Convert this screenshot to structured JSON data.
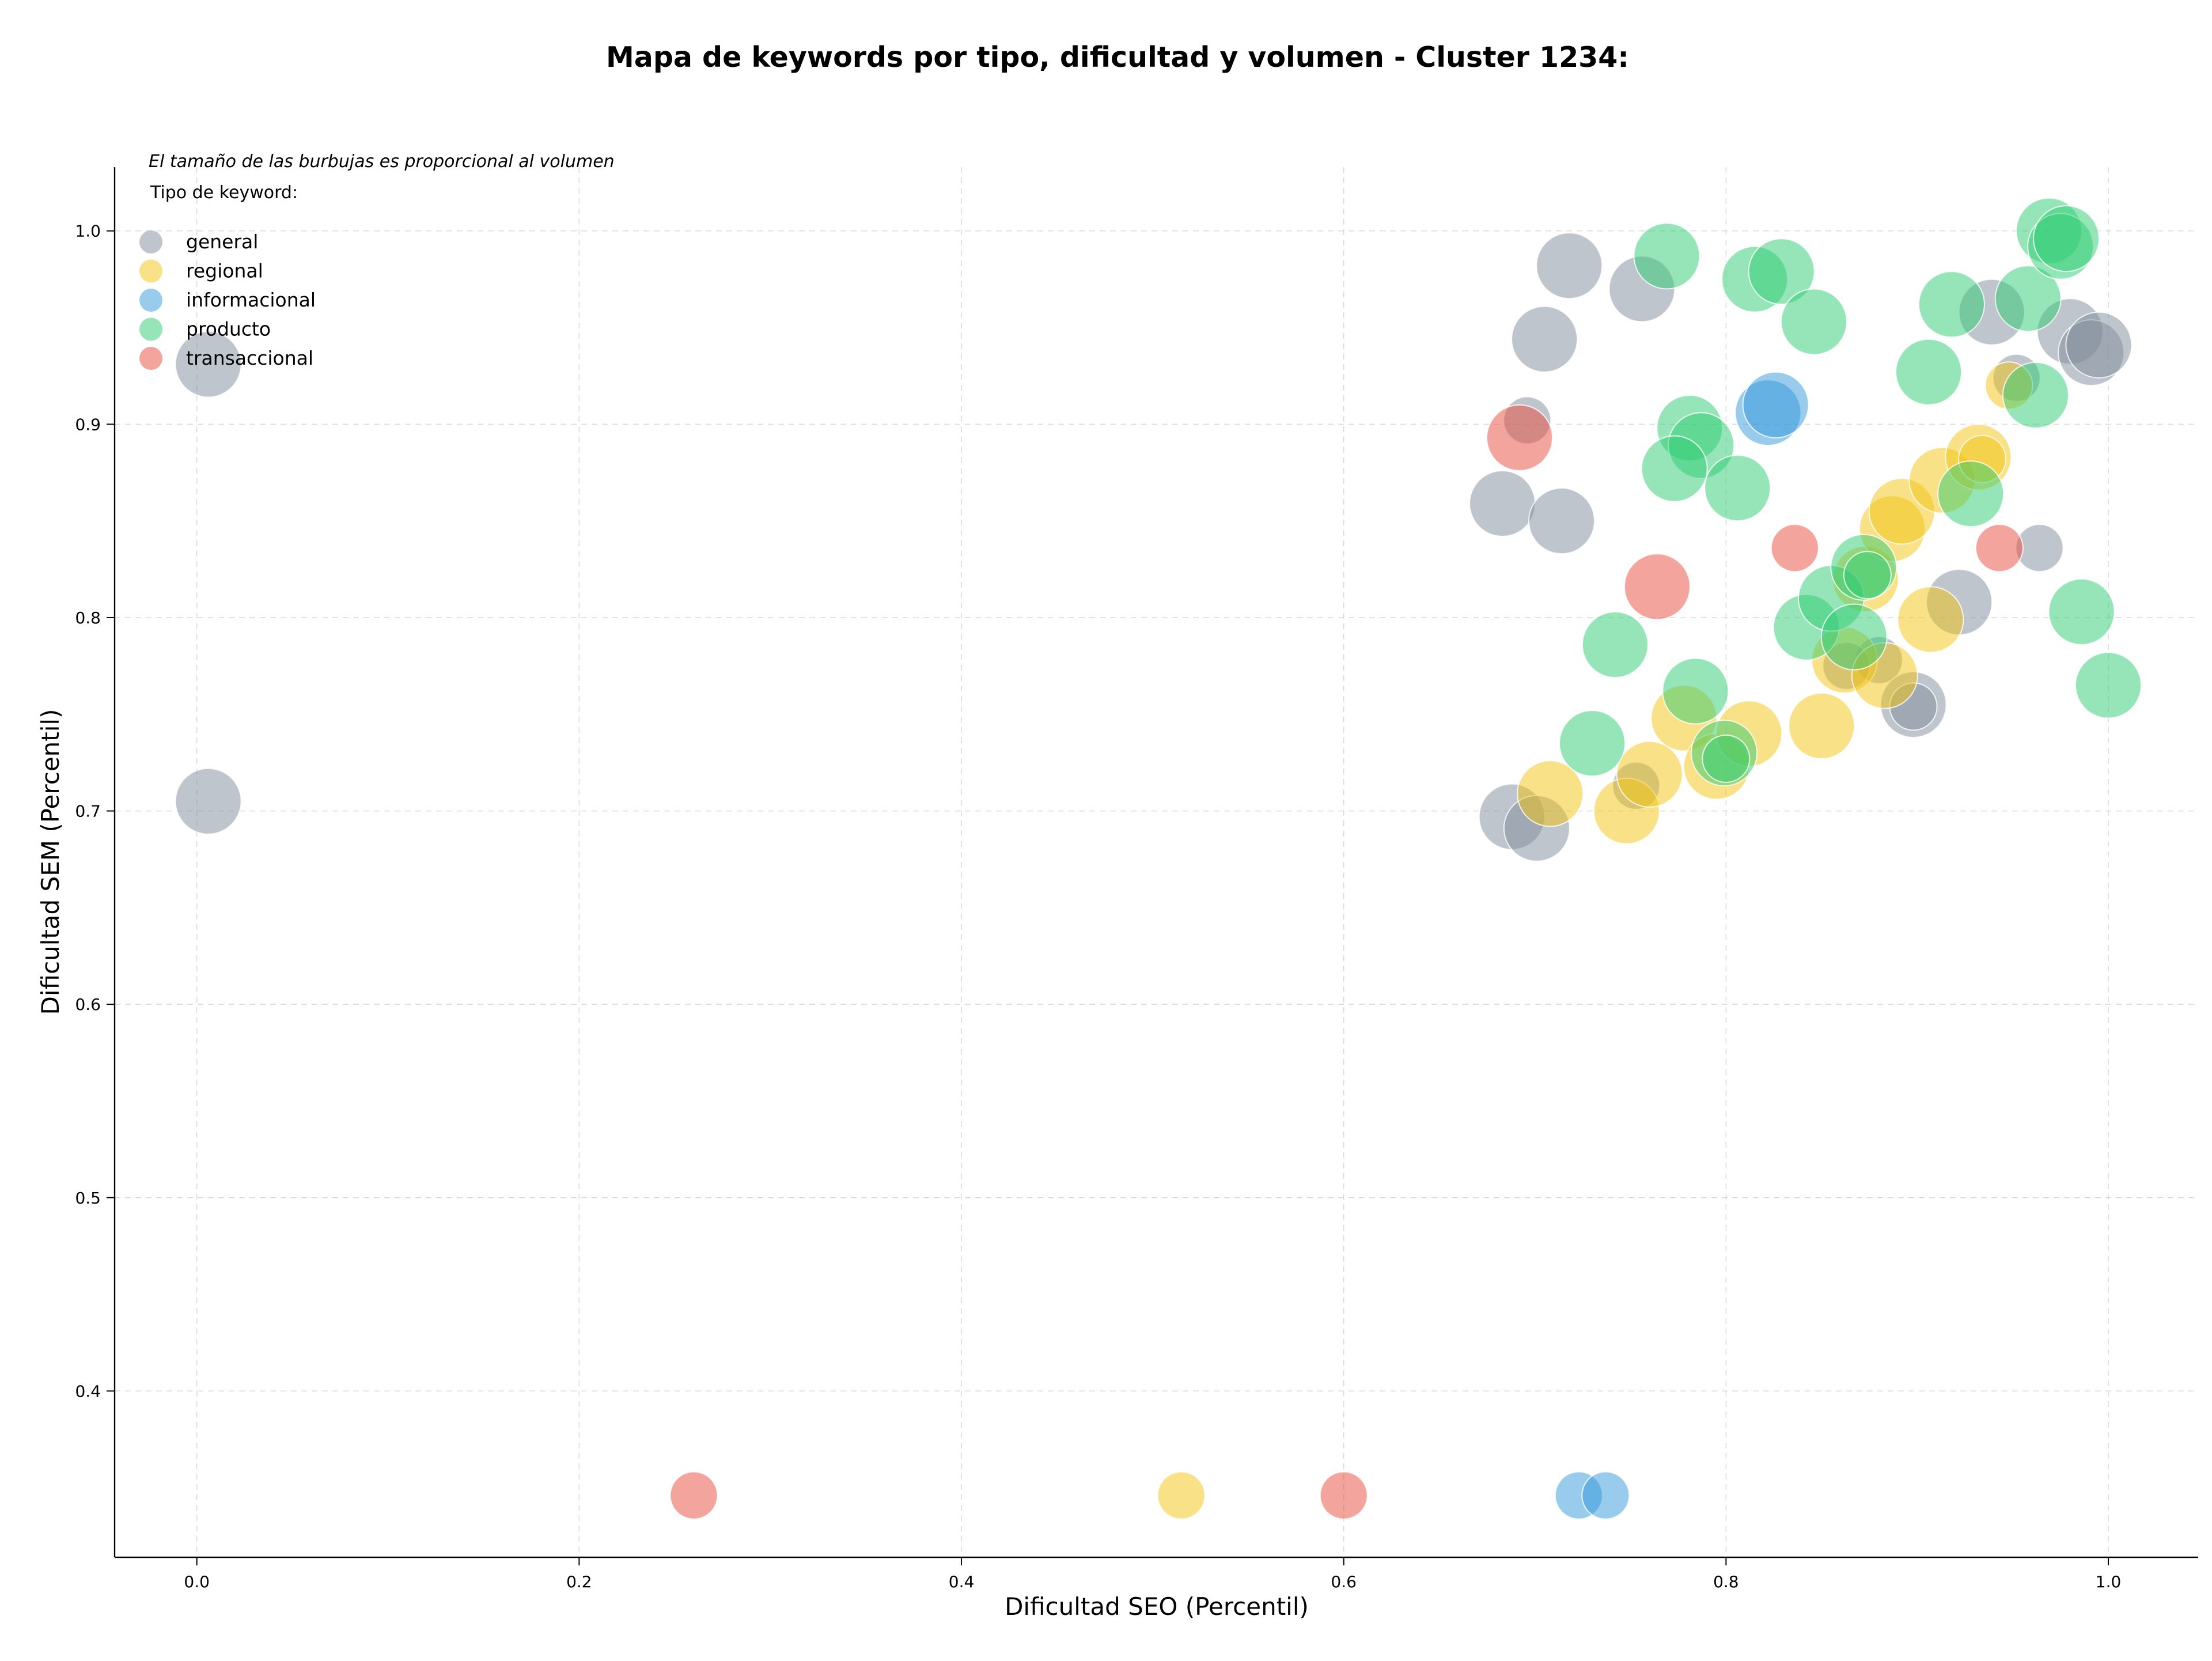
{
  "chart_data": {
    "type": "scatter",
    "title": "Mapa de keywords por tipo, dificultad y volumen - Cluster 1234:",
    "xlabel": "Dificultad SEO (Percentil)",
    "ylabel": "Dificultad SEM (Percentil)",
    "note": "El tamaño de las burbujas es proporcional al volumen",
    "legend_title": "Tipo de keyword:",
    "legend_position": "top-left",
    "grid": true,
    "xlim": [
      -0.043,
      1.047
    ],
    "ylim": [
      0.314,
      1.033
    ],
    "x_ticks": [
      0.0,
      0.2,
      0.4,
      0.6,
      0.8,
      1.0
    ],
    "y_ticks": [
      0.4,
      0.5,
      0.6,
      0.7,
      0.8,
      0.9,
      1.0
    ],
    "x_tick_labels": [
      "0.0",
      "0.2",
      "0.4",
      "0.6",
      "0.8",
      "1.0"
    ],
    "y_tick_labels": [
      "0.4",
      "0.5",
      "0.6",
      "0.7",
      "0.8",
      "0.9",
      "1.0"
    ],
    "size_scale": [
      1,
      2
    ],
    "series": [
      {
        "name": "general",
        "color": "#7f8c9a",
        "points": [
          {
            "x": 0.006,
            "y": 0.931,
            "s": 2
          },
          {
            "x": 0.006,
            "y": 0.705,
            "s": 2
          },
          {
            "x": 0.696,
            "y": 0.902,
            "s": 1
          },
          {
            "x": 0.705,
            "y": 0.944,
            "s": 2
          },
          {
            "x": 0.718,
            "y": 0.982,
            "s": 2
          },
          {
            "x": 0.756,
            "y": 0.97,
            "s": 2
          },
          {
            "x": 0.683,
            "y": 0.859,
            "s": 2
          },
          {
            "x": 0.714,
            "y": 0.85,
            "s": 2
          },
          {
            "x": 0.688,
            "y": 0.697,
            "s": 2
          },
          {
            "x": 0.701,
            "y": 0.691,
            "s": 2
          },
          {
            "x": 0.753,
            "y": 0.713,
            "s": 1
          },
          {
            "x": 0.939,
            "y": 0.958,
            "s": 2
          },
          {
            "x": 0.952,
            "y": 0.924,
            "s": 1
          },
          {
            "x": 0.98,
            "y": 0.948,
            "s": 2
          },
          {
            "x": 0.991,
            "y": 0.937,
            "s": 2
          },
          {
            "x": 0.995,
            "y": 0.941,
            "s": 2
          },
          {
            "x": 0.922,
            "y": 0.808,
            "s": 2
          },
          {
            "x": 0.964,
            "y": 0.836,
            "s": 1
          },
          {
            "x": 0.88,
            "y": 0.778,
            "s": 1
          },
          {
            "x": 0.863,
            "y": 0.775,
            "s": 1
          },
          {
            "x": 0.898,
            "y": 0.755,
            "s": 2
          },
          {
            "x": 0.898,
            "y": 0.754,
            "s": 1
          }
        ]
      },
      {
        "name": "regional",
        "color": "#f1c40f",
        "points": [
          {
            "x": 0.515,
            "y": 0.346,
            "s": 1
          },
          {
            "x": 0.708,
            "y": 0.709,
            "s": 2
          },
          {
            "x": 0.748,
            "y": 0.7,
            "s": 2
          },
          {
            "x": 0.76,
            "y": 0.719,
            "s": 2
          },
          {
            "x": 0.778,
            "y": 0.748,
            "s": 2
          },
          {
            "x": 0.795,
            "y": 0.723,
            "s": 2
          },
          {
            "x": 0.812,
            "y": 0.74,
            "s": 2
          },
          {
            "x": 0.85,
            "y": 0.744,
            "s": 2
          },
          {
            "x": 0.862,
            "y": 0.778,
            "s": 2
          },
          {
            "x": 0.883,
            "y": 0.77,
            "s": 2
          },
          {
            "x": 0.873,
            "y": 0.82,
            "s": 2
          },
          {
            "x": 0.887,
            "y": 0.846,
            "s": 2
          },
          {
            "x": 0.892,
            "y": 0.855,
            "s": 2
          },
          {
            "x": 0.907,
            "y": 0.799,
            "s": 2
          },
          {
            "x": 0.913,
            "y": 0.871,
            "s": 2
          },
          {
            "x": 0.932,
            "y": 0.883,
            "s": 2
          },
          {
            "x": 0.934,
            "y": 0.882,
            "s": 1
          },
          {
            "x": 0.948,
            "y": 0.92,
            "s": 1
          }
        ]
      },
      {
        "name": "informacional",
        "color": "#3498db",
        "points": [
          {
            "x": 0.723,
            "y": 0.346,
            "s": 1
          },
          {
            "x": 0.737,
            "y": 0.346,
            "s": 1
          },
          {
            "x": 0.822,
            "y": 0.906,
            "s": 2
          },
          {
            "x": 0.826,
            "y": 0.91,
            "s": 2
          }
        ]
      },
      {
        "name": "producto",
        "color": "#2ecc71",
        "points": [
          {
            "x": 0.769,
            "y": 0.987,
            "s": 2
          },
          {
            "x": 0.815,
            "y": 0.975,
            "s": 2
          },
          {
            "x": 0.829,
            "y": 0.979,
            "s": 2
          },
          {
            "x": 0.846,
            "y": 0.953,
            "s": 2
          },
          {
            "x": 0.781,
            "y": 0.898,
            "s": 2
          },
          {
            "x": 0.787,
            "y": 0.889,
            "s": 2
          },
          {
            "x": 0.773,
            "y": 0.877,
            "s": 2
          },
          {
            "x": 0.806,
            "y": 0.867,
            "s": 2
          },
          {
            "x": 0.742,
            "y": 0.786,
            "s": 2
          },
          {
            "x": 0.73,
            "y": 0.735,
            "s": 2
          },
          {
            "x": 0.784,
            "y": 0.762,
            "s": 2
          },
          {
            "x": 0.799,
            "y": 0.73,
            "s": 2
          },
          {
            "x": 0.8,
            "y": 0.727,
            "s": 1
          },
          {
            "x": 0.842,
            "y": 0.795,
            "s": 2
          },
          {
            "x": 0.855,
            "y": 0.81,
            "s": 2
          },
          {
            "x": 0.872,
            "y": 0.826,
            "s": 2
          },
          {
            "x": 0.867,
            "y": 0.79,
            "s": 2
          },
          {
            "x": 0.874,
            "y": 0.822,
            "s": 1
          },
          {
            "x": 0.906,
            "y": 0.927,
            "s": 2
          },
          {
            "x": 0.918,
            "y": 0.962,
            "s": 2
          },
          {
            "x": 0.928,
            "y": 0.864,
            "s": 2
          },
          {
            "x": 0.958,
            "y": 0.965,
            "s": 2
          },
          {
            "x": 0.962,
            "y": 0.915,
            "s": 2
          },
          {
            "x": 0.969,
            "y": 1.0,
            "s": 2
          },
          {
            "x": 0.975,
            "y": 0.992,
            "s": 2
          },
          {
            "x": 0.978,
            "y": 0.996,
            "s": 2
          },
          {
            "x": 0.986,
            "y": 0.803,
            "s": 2
          },
          {
            "x": 1.0,
            "y": 0.765,
            "s": 2
          }
        ]
      },
      {
        "name": "transaccional",
        "color": "#e74c3c",
        "points": [
          {
            "x": 0.26,
            "y": 0.346,
            "s": 1
          },
          {
            "x": 0.6,
            "y": 0.346,
            "s": 1
          },
          {
            "x": 0.692,
            "y": 0.893,
            "s": 2
          },
          {
            "x": 0.764,
            "y": 0.816,
            "s": 2
          },
          {
            "x": 0.836,
            "y": 0.836,
            "s": 1
          },
          {
            "x": 0.943,
            "y": 0.836,
            "s": 1
          }
        ]
      }
    ]
  }
}
